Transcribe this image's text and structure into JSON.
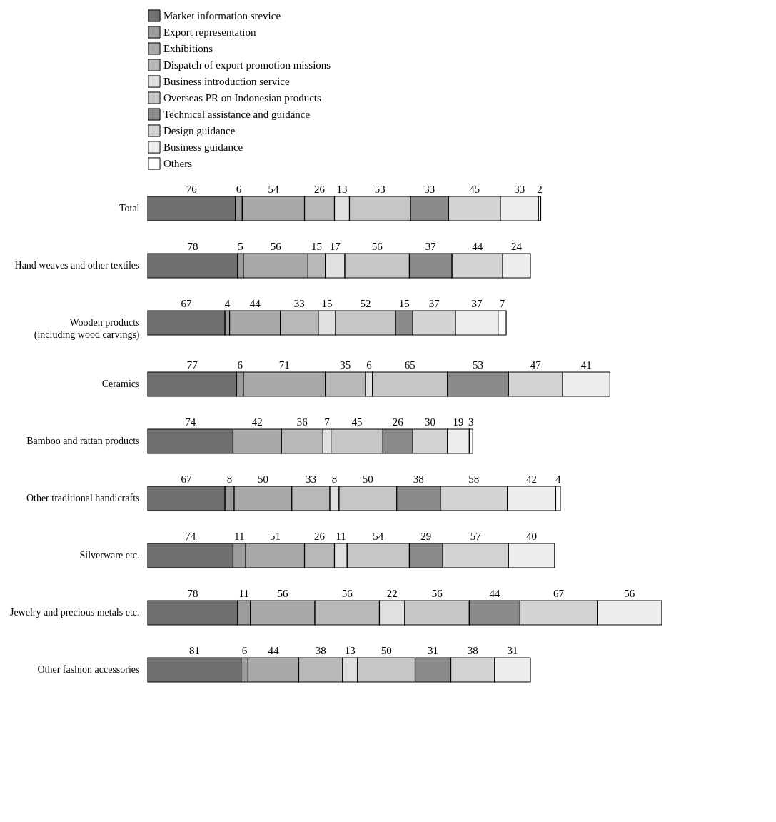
{
  "chart_data": {
    "type": "bar",
    "orientation": "horizontal",
    "stacked": true,
    "data_labels": true,
    "legend": "top",
    "categories": [
      "Total",
      "Hand weaves and other textiles",
      "Wooden products (including wood carvings)",
      "Ceramics",
      "Bamboo and rattan products",
      "Other traditional handicrafts",
      "Silverware etc.",
      "Jewelry and precious metals etc.",
      "Other fashion accessories"
    ],
    "series": [
      {
        "name": "Market information srevice",
        "color": "#707070",
        "values": [
          76,
          78,
          67,
          77,
          74,
          67,
          74,
          78,
          81
        ]
      },
      {
        "name": "Export representation",
        "color": "#9c9c9c",
        "values": [
          6,
          5,
          4,
          6,
          null,
          8,
          11,
          11,
          6
        ]
      },
      {
        "name": "Exhibitions",
        "color": "#a9a9a9",
        "values": [
          54,
          56,
          44,
          71,
          42,
          50,
          51,
          56,
          44
        ]
      },
      {
        "name": "Dispatch of export promotion missions",
        "color": "#b8b8b8",
        "values": [
          26,
          15,
          33,
          35,
          36,
          33,
          26,
          56,
          38
        ]
      },
      {
        "name": "Business introduction service",
        "color": "#e0e0e0",
        "values": [
          13,
          17,
          15,
          6,
          7,
          8,
          11,
          22,
          13
        ]
      },
      {
        "name": "Overseas PR on Indonesian products",
        "color": "#c6c6c6",
        "values": [
          53,
          56,
          52,
          65,
          45,
          50,
          54,
          56,
          50
        ]
      },
      {
        "name": "Technical assistance and guidance",
        "color": "#8a8a8a",
        "values": [
          33,
          37,
          15,
          53,
          26,
          38,
          29,
          44,
          31
        ]
      },
      {
        "name": "Design guidance",
        "color": "#d3d3d3",
        "values": [
          45,
          44,
          37,
          47,
          30,
          58,
          57,
          67,
          38
        ]
      },
      {
        "name": "Business guidance",
        "color": "#eeeeee",
        "values": [
          33,
          24,
          37,
          41,
          19,
          42,
          40,
          56,
          31
        ]
      },
      {
        "name": "Others",
        "color": "#ffffff",
        "values": [
          2,
          null,
          7,
          null,
          3,
          4,
          null,
          null,
          null
        ]
      }
    ]
  }
}
